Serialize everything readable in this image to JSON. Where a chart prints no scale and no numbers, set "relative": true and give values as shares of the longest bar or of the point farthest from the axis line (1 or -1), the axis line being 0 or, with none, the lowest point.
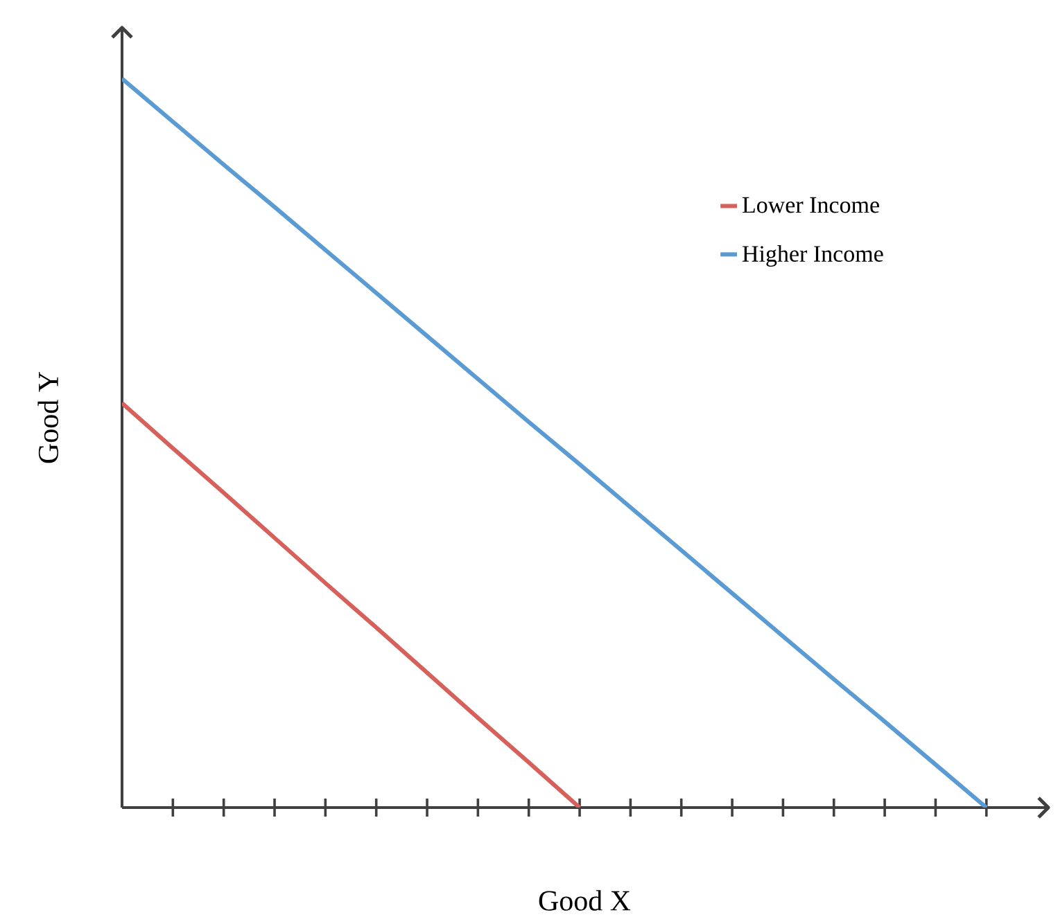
{
  "chart_data": {
    "type": "line",
    "relative": true,
    "xlabel": "Good X",
    "ylabel": "Good Y",
    "legend": "top right",
    "grid": false,
    "marker": "none",
    "line_style": "solid",
    "categories": [
      null,
      null,
      null,
      null,
      null,
      null,
      null,
      null,
      null,
      null,
      null,
      null,
      null,
      null,
      null,
      null,
      null,
      null
    ],
    "series": [
      {
        "name": "Lower Income",
        "color": "#d7605a",
        "values": [
          0.555,
          0.493,
          0.432,
          0.37,
          0.308,
          0.247,
          0.185,
          0.123,
          0.062,
          0,
          null,
          null,
          null,
          null,
          null,
          null,
          null,
          null
        ]
      },
      {
        "name": "Higher Income",
        "color": "#5a9bd3",
        "values": [
          1,
          0.941,
          0.882,
          0.824,
          0.765,
          0.706,
          0.647,
          0.588,
          0.529,
          0.471,
          0.412,
          0.353,
          0.294,
          0.235,
          0.176,
          0.118,
          0.059,
          0
        ]
      }
    ]
  }
}
